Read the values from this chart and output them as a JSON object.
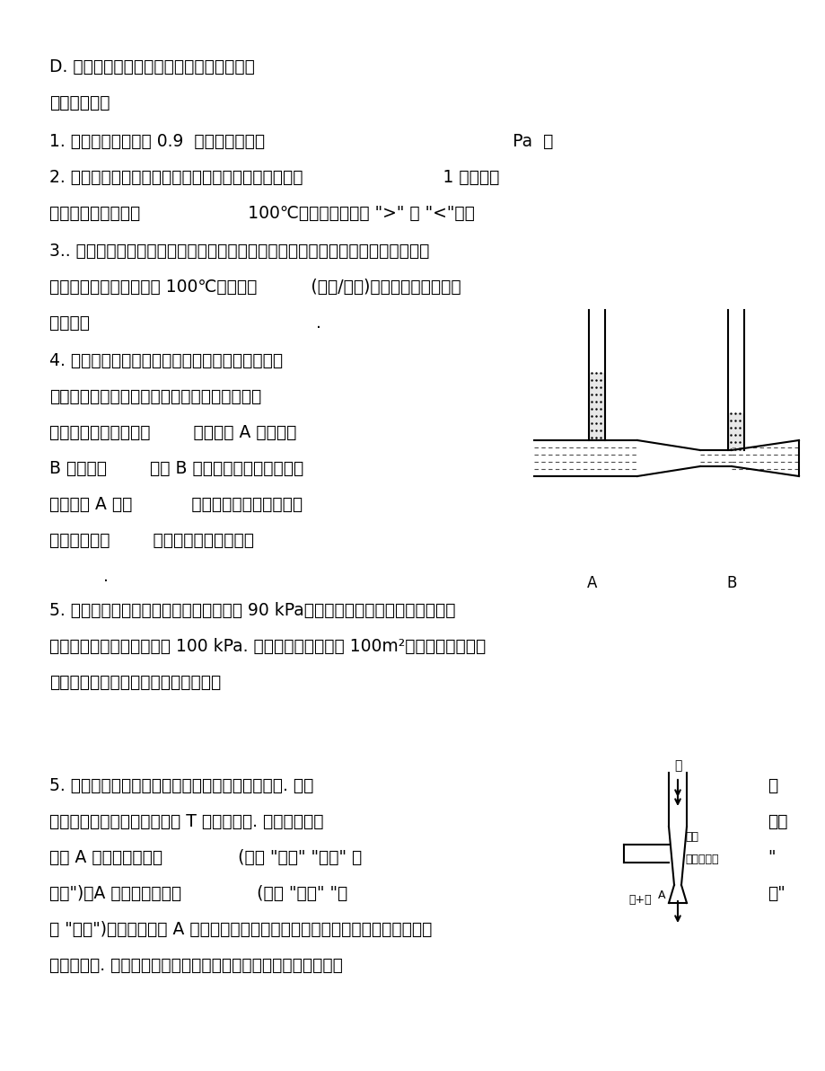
{
  "bg_color": "#ffffff",
  "text_color": "#000000",
  "line1": "D. 用吸盘能将玻璃板提起是分子引力的作用",
  "section_header": "【课后作业】",
  "q1": "1. 某山顶大气压强为 0.9  个标准大气压即                                              Pa  ；",
  "q2a": "2. 高压锅容易把食物煮烂，是因为锅内水面上方的气压                          1 个标准大",
  "q2b": "气压，锅内水的沸点                    100℃（以上两空选填 \">\" 或 \"<\"）。",
  "q3a": "3.. 在制糖工业中，要用沸腾的办法除去糖汁中的水分，为了使糖在沸腾的时候不致",
  "q3b": "变质，沸腾的温度要低于 100℃，只需要          (升高/降低)糖汁表面上方气压，",
  "q3c": "这是因为                                          .",
  "q4a": "4. 如图所示的装置接到水流稳定的自来水上，当水",
  "q4b": "在水管中流动时，可以看到粗管上方的管中液面",
  "q4c": "比细管上方的管中液面        ，这说明 A 处压强比",
  "q4d": "B 处的压强        ，而 B 处的横截面积小，水的流",
  "q4e": "速显然比 A 处的           ，由此可知：流体的流速",
  "q4f": "大的地方压强        ，在流速小的地方压强",
  "q4g": "          .",
  "q5a": "5. 一次龙卷风发生时，屋外气压急剧降到 90 kPa；当时门窗紧闭，可以认为室内气",
  "q5b": "压是标准大气压，粗略取作 100 kPa. 若室内屋顶的面积是 100m²，这时屋顶足以被",
  "q5c": "掀飞，求屋顶所受到的内外压力的差？",
  "q6a": "5. 化学实验室里常用的水流抽气机的结构如图所示. 使用",
  "q6b": "让自来水流入具有内置喷口的 T 型玻璃管内. 由于水流的作",
  "q6c": "喷口 A 处气流的速度将              (选填 \"减小\" \"增大\" 或",
  "q6d": "不变\")，A 处气体的压强将              (选填 \"减小\" \"增",
  "q6e": "或 \"不变\")，从而使喷口 A 处的气体和抽气容器内的气体之间产生压力差，以达到",
  "q6f": "抽气的目的. 这种流体抽气机抽腐蚀性气体时比金属抽气机优越。",
  "q6_right1": "时",
  "q6_right2": "用，",
  "q6_right3": "\"",
  "q6_right4": "大\""
}
